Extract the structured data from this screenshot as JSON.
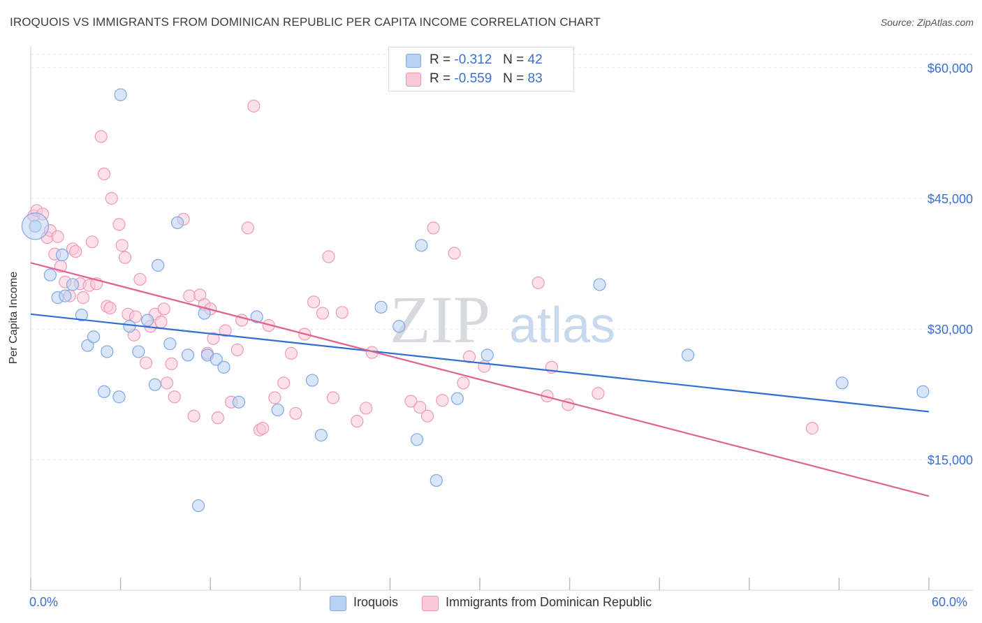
{
  "title": "IROQUOIS VS IMMIGRANTS FROM DOMINICAN REPUBLIC PER CAPITA INCOME CORRELATION CHART",
  "source": "Source: ZipAtlas.com",
  "watermark": {
    "part1": "ZIP",
    "part2": "atlas"
  },
  "stats": {
    "rows": [
      {
        "r_label": "R =",
        "r_value": "-0.312",
        "n_label": "N =",
        "n_value": "42"
      },
      {
        "r_label": "R =",
        "r_value": "-0.559",
        "n_label": "N =",
        "n_value": "83"
      }
    ]
  },
  "legend": {
    "items": [
      "Iroquois",
      "Immigrants from Dominican Republic"
    ]
  },
  "colors": {
    "series1_fill": "#b9d1f3",
    "series1_stroke": "#7ea8e6",
    "series1_line": "#2f6fd1",
    "series2_fill": "#f9c9d8",
    "series2_stroke": "#ef9ab5",
    "series2_line": "#e0628f",
    "axis_text": "#3a6fd0",
    "grid": "#dddddd"
  },
  "chart_data": {
    "type": "scatter",
    "title": "IROQUOIS VS IMMIGRANTS FROM DOMINICAN REPUBLIC PER CAPITA INCOME CORRELATION CHART",
    "xlabel": "",
    "ylabel": "Per Capita Income",
    "xlim": [
      0,
      60
    ],
    "ylim": [
      0,
      60000
    ],
    "x_tick_labels": [
      "0.0%",
      "60.0%"
    ],
    "y_ticks": [
      15000,
      30000,
      45000,
      60000
    ],
    "y_tick_labels": [
      "$15,000",
      "$30,000",
      "$45,000",
      "$60,000"
    ],
    "grid": true,
    "legend_position": "bottom",
    "series": [
      {
        "name": "Iroquois",
        "points": [
          [
            0.3,
            41800
          ],
          [
            1.3,
            36200
          ],
          [
            1.8,
            33600
          ],
          [
            2.1,
            38500
          ],
          [
            2.3,
            33800
          ],
          [
            2.8,
            35100
          ],
          [
            3.4,
            31600
          ],
          [
            3.8,
            28100
          ],
          [
            4.2,
            29100
          ],
          [
            4.9,
            22800
          ],
          [
            5.1,
            27400
          ],
          [
            5.9,
            22200
          ],
          [
            6.0,
            56900
          ],
          [
            6.6,
            30300
          ],
          [
            7.2,
            27400
          ],
          [
            7.8,
            31000
          ],
          [
            8.3,
            23600
          ],
          [
            8.5,
            37300
          ],
          [
            9.3,
            28300
          ],
          [
            9.8,
            42200
          ],
          [
            10.5,
            27000
          ],
          [
            11.2,
            9700
          ],
          [
            11.6,
            31800
          ],
          [
            11.8,
            27000
          ],
          [
            12.4,
            26500
          ],
          [
            12.9,
            25600
          ],
          [
            13.9,
            21600
          ],
          [
            15.1,
            31400
          ],
          [
            16.5,
            20700
          ],
          [
            18.8,
            24100
          ],
          [
            19.4,
            17800
          ],
          [
            23.4,
            32500
          ],
          [
            24.6,
            30300
          ],
          [
            25.8,
            17300
          ],
          [
            26.1,
            39600
          ],
          [
            27.1,
            12600
          ],
          [
            28.5,
            22000
          ],
          [
            30.5,
            27000
          ],
          [
            38.0,
            35100
          ],
          [
            43.9,
            27000
          ],
          [
            54.2,
            23800
          ],
          [
            59.6,
            22800
          ]
        ],
        "trend": [
          [
            0,
            31700
          ],
          [
            60,
            20500
          ]
        ]
      },
      {
        "name": "Immigrants from Dominican Republic",
        "points": [
          [
            0.2,
            43000
          ],
          [
            0.4,
            43600
          ],
          [
            0.8,
            43200
          ],
          [
            1.1,
            40500
          ],
          [
            1.3,
            41300
          ],
          [
            1.6,
            38600
          ],
          [
            1.8,
            40600
          ],
          [
            2.0,
            37200
          ],
          [
            2.3,
            35400
          ],
          [
            2.6,
            33800
          ],
          [
            2.8,
            39200
          ],
          [
            3.0,
            38900
          ],
          [
            3.3,
            35200
          ],
          [
            3.5,
            33600
          ],
          [
            3.9,
            35000
          ],
          [
            4.1,
            40000
          ],
          [
            4.4,
            35200
          ],
          [
            4.7,
            52100
          ],
          [
            4.9,
            47800
          ],
          [
            5.1,
            32600
          ],
          [
            5.3,
            32400
          ],
          [
            5.4,
            45000
          ],
          [
            5.9,
            42000
          ],
          [
            6.1,
            39600
          ],
          [
            6.3,
            38200
          ],
          [
            6.5,
            31700
          ],
          [
            6.9,
            29300
          ],
          [
            7.0,
            31400
          ],
          [
            7.3,
            35700
          ],
          [
            7.7,
            26100
          ],
          [
            8.0,
            30300
          ],
          [
            8.3,
            31700
          ],
          [
            8.7,
            30800
          ],
          [
            8.9,
            32300
          ],
          [
            9.1,
            23800
          ],
          [
            9.4,
            26000
          ],
          [
            9.6,
            22200
          ],
          [
            10.2,
            42600
          ],
          [
            10.6,
            33800
          ],
          [
            10.9,
            20000
          ],
          [
            11.3,
            33900
          ],
          [
            11.6,
            32800
          ],
          [
            11.8,
            27200
          ],
          [
            12.0,
            32300
          ],
          [
            12.2,
            28900
          ],
          [
            12.5,
            19800
          ],
          [
            13.0,
            29800
          ],
          [
            13.4,
            21600
          ],
          [
            13.8,
            27600
          ],
          [
            14.1,
            31000
          ],
          [
            14.5,
            41600
          ],
          [
            14.9,
            55600
          ],
          [
            15.3,
            18400
          ],
          [
            15.5,
            18600
          ],
          [
            15.9,
            30400
          ],
          [
            16.3,
            22100
          ],
          [
            16.9,
            23800
          ],
          [
            17.4,
            27200
          ],
          [
            17.7,
            20300
          ],
          [
            18.3,
            29400
          ],
          [
            18.9,
            33100
          ],
          [
            19.5,
            31800
          ],
          [
            19.9,
            38300
          ],
          [
            20.2,
            22100
          ],
          [
            20.8,
            31900
          ],
          [
            21.8,
            19400
          ],
          [
            22.4,
            20900
          ],
          [
            22.8,
            27300
          ],
          [
            25.4,
            21700
          ],
          [
            26.0,
            21000
          ],
          [
            26.5,
            20000
          ],
          [
            26.9,
            41600
          ],
          [
            27.5,
            21800
          ],
          [
            28.3,
            38700
          ],
          [
            28.9,
            23800
          ],
          [
            29.3,
            26800
          ],
          [
            30.3,
            25700
          ],
          [
            33.9,
            35300
          ],
          [
            34.5,
            22300
          ],
          [
            34.8,
            25600
          ],
          [
            35.9,
            21300
          ],
          [
            37.9,
            22600
          ],
          [
            52.2,
            18600
          ]
        ],
        "trend": [
          [
            0,
            37600
          ],
          [
            60,
            10800
          ]
        ]
      }
    ]
  }
}
